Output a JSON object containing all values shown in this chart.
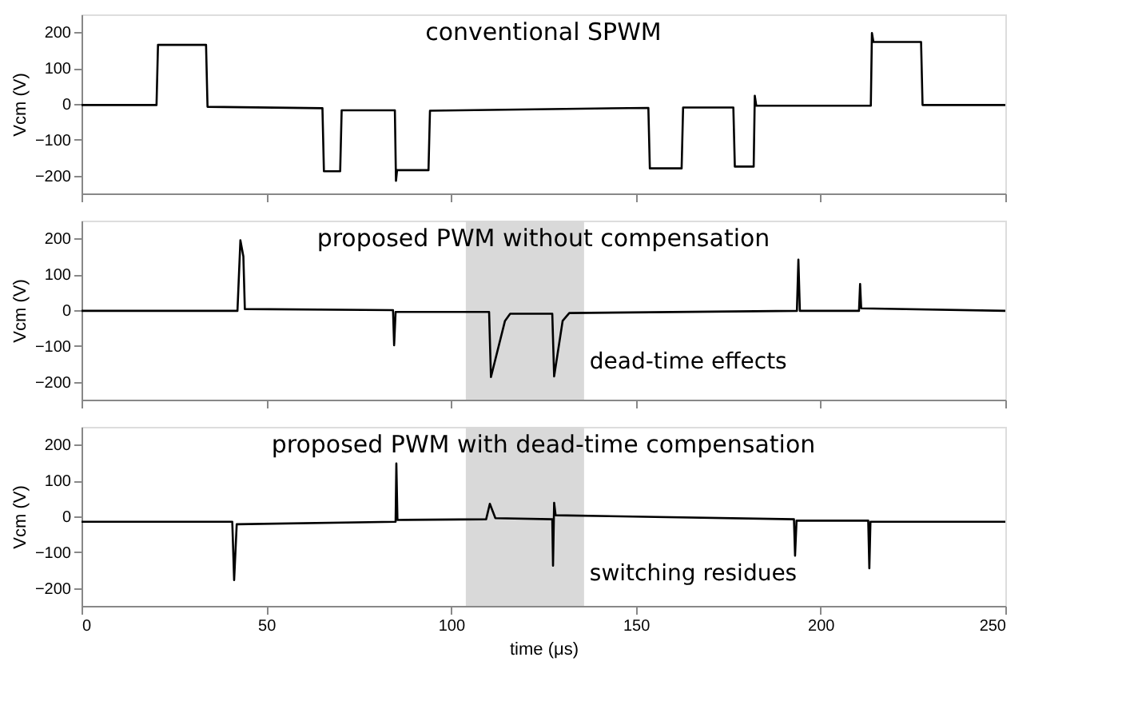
{
  "chart_data": [
    {
      "type": "line",
      "title": "conventional SPWM",
      "ylabel": "Vcm (V)",
      "xlim": [
        0,
        250
      ],
      "xticks": [
        0,
        50,
        100,
        150,
        200,
        250
      ],
      "ylim": [
        -250,
        250
      ],
      "yticks": [
        -200,
        -100,
        0,
        100,
        200
      ],
      "tick_labels": "y",
      "grid": false,
      "series": [
        {
          "color": "#000000",
          "x": [
            0,
            20.3,
            20.7,
            33.7,
            34.1,
            65.2,
            65.6,
            70.0,
            70.4,
            84.8,
            85.1,
            85.4,
            93.9,
            94.3,
            153.4,
            153.8,
            162.4,
            162.8,
            176.4,
            176.8,
            181.9,
            182.2,
            182.6,
            213.6,
            213.9,
            214.3,
            227.2,
            227.6,
            250
          ],
          "values": [
            -3,
            -3,
            165,
            165,
            -8,
            -12,
            -188,
            -188,
            -18,
            -18,
            -215,
            -185,
            -185,
            -19,
            -11,
            -180,
            -180,
            -10,
            -10,
            -175,
            -175,
            23,
            -5,
            -5,
            198,
            173,
            173,
            -3,
            -3
          ]
        }
      ]
    },
    {
      "type": "line",
      "title": "proposed PWM without compensation",
      "ylabel": "Vcm (V)",
      "xlim": [
        0,
        250
      ],
      "xticks": [
        0,
        50,
        100,
        150,
        200,
        250
      ],
      "ylim": [
        -250,
        250
      ],
      "yticks": [
        -200,
        -100,
        0,
        100,
        200
      ],
      "tick_labels": "y",
      "grid": false,
      "bands": [
        {
          "axis": "x",
          "from": 104,
          "to": 136,
          "color": "#d9d9d9"
        }
      ],
      "annotations": [
        {
          "text": "dead-time effects",
          "x": 137.5,
          "y": -145
        }
      ],
      "series": [
        {
          "color": "#000000",
          "x": [
            0,
            42.2,
            43.0,
            43.8,
            44.2,
            84.3,
            84.6,
            85.0,
            110.3,
            110.8,
            114.6,
            116,
            127.4,
            127.9,
            130.2,
            132,
            193.6,
            194.0,
            194.4,
            210.4,
            210.7,
            211.0,
            250
          ],
          "values": [
            -2,
            -2,
            195,
            150,
            3,
            0,
            -98,
            -5,
            -5,
            -187,
            -30,
            -10,
            -10,
            -185,
            -30,
            -8,
            -2,
            141,
            -2,
            -2,
            73,
            5,
            -2
          ]
        }
      ]
    },
    {
      "type": "line",
      "title": "proposed PWM with dead-time compensation",
      "xlabel": "time (μs)",
      "ylabel": "Vcm (V)",
      "xlim": [
        0,
        250
      ],
      "xticks": [
        0,
        50,
        100,
        150,
        200,
        250
      ],
      "ylim": [
        -250,
        250
      ],
      "yticks": [
        -200,
        -100,
        0,
        100,
        200
      ],
      "grid": false,
      "bands": [
        {
          "axis": "x",
          "from": 104,
          "to": 136,
          "color": "#d9d9d9"
        }
      ],
      "annotations": [
        {
          "text": "switching residues",
          "x": 137.5,
          "y": -160
        }
      ],
      "series": [
        {
          "color": "#000000",
          "x": [
            0,
            40.8,
            41.3,
            42.0,
            85.0,
            85.2,
            85.5,
            109.5,
            110.5,
            112,
            127.4,
            127.6,
            127.9,
            128.3,
            192.8,
            193.1,
            193.5,
            212.9,
            213.2,
            213.5,
            250
          ],
          "values": [
            -15,
            -15,
            -178,
            -22,
            -15,
            148,
            -10,
            -8,
            35,
            -5,
            -8,
            -138,
            38,
            3,
            -8,
            -110,
            -12,
            -12,
            -145,
            -15,
            -15
          ]
        }
      ]
    }
  ]
}
